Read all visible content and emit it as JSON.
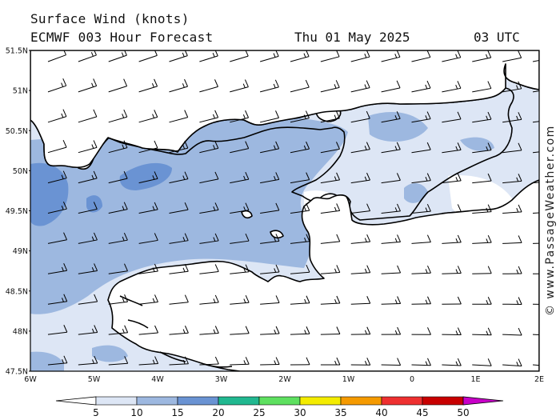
{
  "header": {
    "title": "Surface Wind (knots)",
    "model": "ECMWF 003 Hour Forecast",
    "date": "Thu 01 May 2025",
    "time": "03 UTC"
  },
  "credit": "© www.PassageWeather.com",
  "map": {
    "lat_labels": [
      "51.5N",
      "51N",
      "50.5N",
      "50N",
      "49.5N",
      "49N",
      "48.5N",
      "48N",
      "47.5N"
    ],
    "lon_labels": [
      "6W",
      "5W",
      "4W",
      "3W",
      "2W",
      "1W",
      "0",
      "1E",
      "2E"
    ],
    "lon_range": [
      -6,
      2
    ],
    "lat_range": [
      47.5,
      51.5
    ],
    "wind_direction": "southwesterly to westerly",
    "land_color": "#ffffff",
    "coast_color": "#000000"
  },
  "legend": {
    "levels": [
      "5",
      "10",
      "15",
      "20",
      "25",
      "30",
      "35",
      "40",
      "45",
      "50"
    ],
    "colors": [
      "#ffffff",
      "#dde6f5",
      "#9db8e0",
      "#6a93d3",
      "#21b890",
      "#5ee060",
      "#f4ec00",
      "#f59a00",
      "#ee3030",
      "#c80000",
      "#c800c8"
    ]
  }
}
